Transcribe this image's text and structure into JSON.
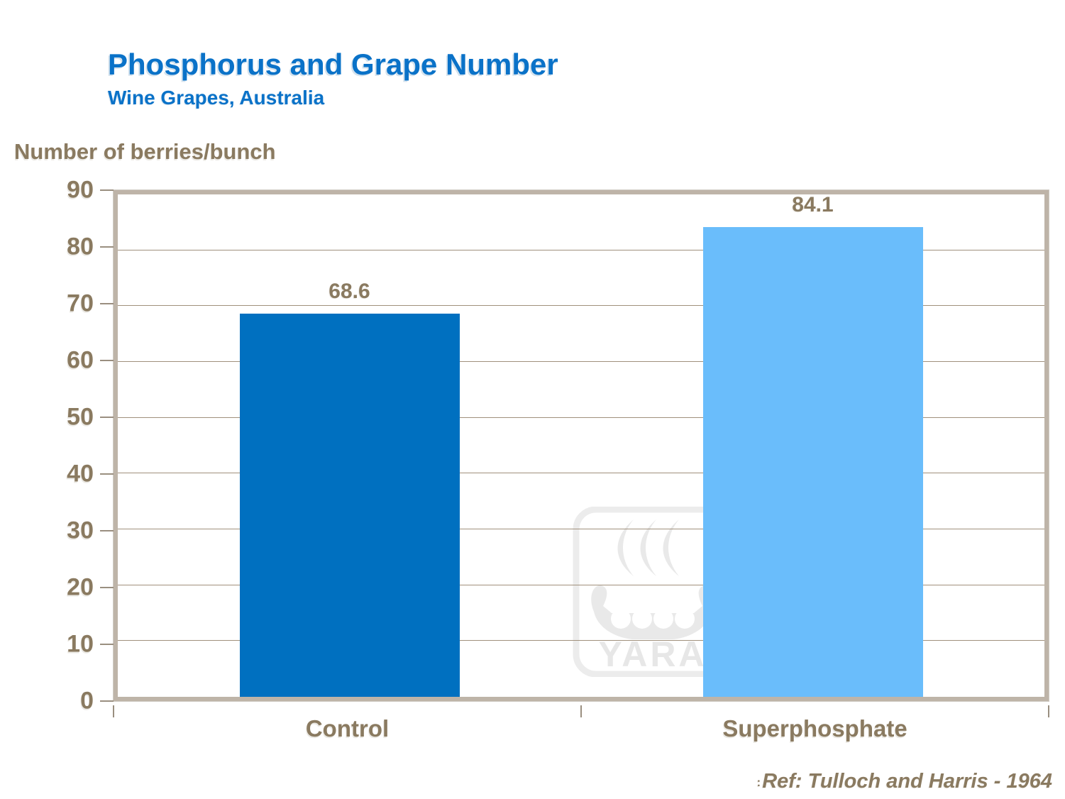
{
  "header": {
    "title": "Phosphorus and Grape Number",
    "subtitle": "Wine Grapes, Australia"
  },
  "axis_title": "Number of berries/bunch",
  "reference": {
    "prefix": ":",
    "text": "Ref: Tulloch and Harris - 1964"
  },
  "watermark": {
    "name": "yara-logo",
    "text": "YARA"
  },
  "colors": {
    "title_blue": "#0a72c8",
    "text_brown": "#8a7a60",
    "bar_control": "#0070c0",
    "bar_superphosphate": "#6abdfb",
    "frame": "#beb4a8",
    "gridline": "#a0907c",
    "watermark_gray": "#e9e9e9"
  },
  "chart_data": {
    "type": "bar",
    "title": "Phosphorus and Grape Number",
    "subtitle": "Wine Grapes, Australia",
    "categories": [
      "Control",
      "Superphosphate"
    ],
    "values": [
      68.6,
      84.1
    ],
    "data_labels": [
      "68.6",
      "84.1"
    ],
    "series_colors": [
      "#0070c0",
      "#6abdfb"
    ],
    "xlabel": "",
    "ylabel": "Number of berries/bunch",
    "ylim": [
      0,
      90
    ],
    "yticks": [
      0,
      10,
      20,
      30,
      40,
      50,
      60,
      70,
      80,
      90
    ],
    "grid": true,
    "legend": "none",
    "annotation": "Ref: Tulloch and Harris - 1964"
  }
}
